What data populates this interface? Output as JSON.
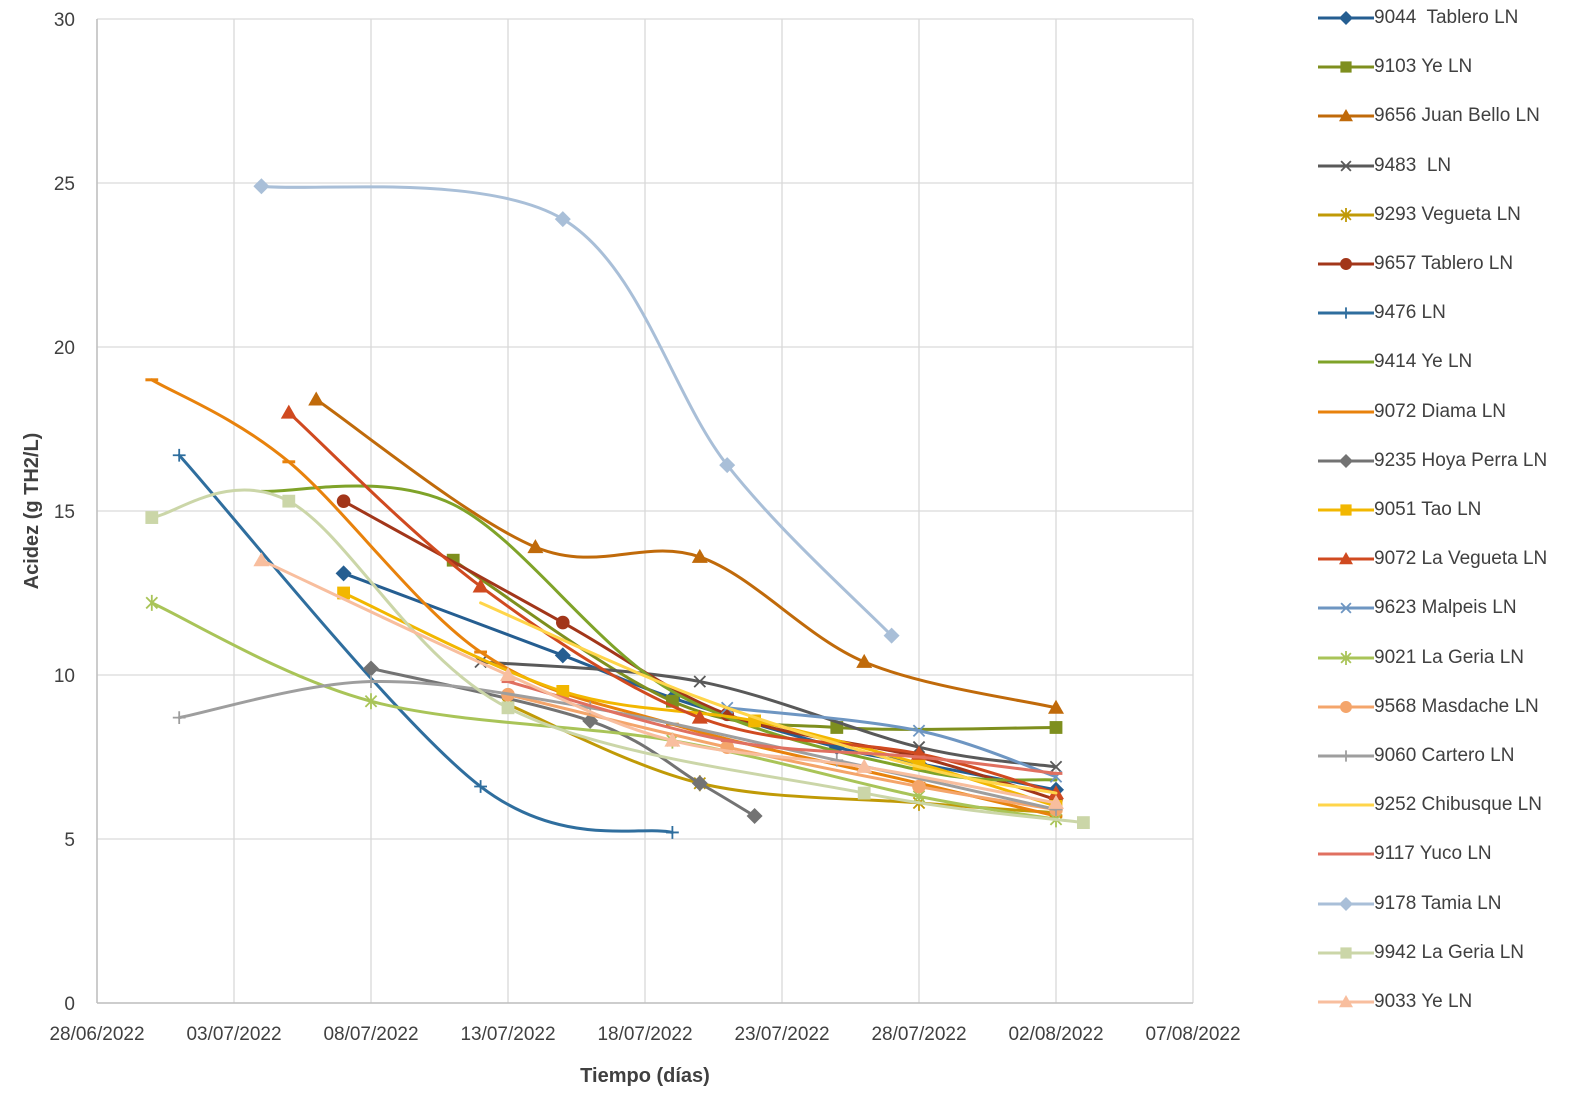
{
  "chart_data": {
    "type": "line",
    "title": "",
    "xlabel": "Tiempo (días)",
    "ylabel": "Acidez (g TH2/L)",
    "x_ticks": [
      "28/06/2022",
      "03/07/2022",
      "08/07/2022",
      "13/07/2022",
      "18/07/2022",
      "23/07/2022",
      "28/07/2022",
      "02/08/2022",
      "07/08/2022"
    ],
    "xlim": [
      "28/06/2022",
      "07/08/2022"
    ],
    "ylim": [
      0,
      30
    ],
    "y_ticks": [
      0,
      5,
      10,
      15,
      20,
      25,
      30
    ],
    "grid": true,
    "legend_position": "right",
    "series": [
      {
        "name": "9044  Tablero LN",
        "color": "#255E91",
        "marker": "diamond",
        "points": [
          [
            "07/07/2022",
            13.1
          ],
          [
            "15/07/2022",
            10.6
          ],
          [
            "19/07/2022",
            9.3
          ],
          [
            "25/07/2022",
            7.8
          ],
          [
            "28/07/2022",
            7.3
          ],
          [
            "02/08/2022",
            6.5
          ]
        ]
      },
      {
        "name": "9103 Ye LN",
        "color": "#7E8F1E",
        "marker": "square",
        "points": [
          [
            "11/07/2022",
            13.5
          ],
          [
            "19/07/2022",
            9.2
          ],
          [
            "25/07/2022",
            8.4
          ],
          [
            "02/08/2022",
            8.4
          ]
        ]
      },
      {
        "name": "9656 Juan Bello LN",
        "color": "#C06A0A",
        "marker": "triangle",
        "points": [
          [
            "06/07/2022",
            18.4
          ],
          [
            "14/07/2022",
            13.9
          ],
          [
            "20/07/2022",
            13.6
          ],
          [
            "26/07/2022",
            10.4
          ],
          [
            "02/08/2022",
            9.0
          ]
        ]
      },
      {
        "name": "9483  LN",
        "color": "#595959",
        "marker": "x",
        "points": [
          [
            "12/07/2022",
            10.4
          ],
          [
            "20/07/2022",
            9.8
          ],
          [
            "28/07/2022",
            7.8
          ],
          [
            "02/08/2022",
            7.2
          ]
        ]
      },
      {
        "name": "9293 Vegueta LN",
        "color": "#C09A06",
        "marker": "star",
        "points": [
          [
            "13/07/2022",
            9.1
          ],
          [
            "20/07/2022",
            6.7
          ],
          [
            "28/07/2022",
            6.1
          ],
          [
            "02/08/2022",
            5.8
          ]
        ]
      },
      {
        "name": "9657 Tablero LN",
        "color": "#A2361A",
        "marker": "circle",
        "points": [
          [
            "07/07/2022",
            15.3
          ],
          [
            "15/07/2022",
            11.6
          ],
          [
            "21/07/2022",
            8.8
          ],
          [
            "28/07/2022",
            7.5
          ],
          [
            "02/08/2022",
            6.2
          ]
        ]
      },
      {
        "name": "9476 LN",
        "color": "#2F6E9E",
        "marker": "plus",
        "points": [
          [
            "01/07/2022",
            16.7
          ],
          [
            "12/07/2022",
            6.6
          ],
          [
            "19/07/2022",
            5.2
          ]
        ]
      },
      {
        "name": "9414 Ye LN",
        "color": "#7FA329",
        "marker": "none",
        "points": [
          [
            "04/07/2022",
            15.6
          ],
          [
            "11/07/2022",
            15.2
          ],
          [
            "19/07/2022",
            9.5
          ],
          [
            "28/07/2022",
            7.1
          ],
          [
            "02/08/2022",
            6.8
          ]
        ]
      },
      {
        "name": "9072 Diama LN",
        "color": "#E8820C",
        "marker": "dash",
        "points": [
          [
            "30/06/2022",
            19.0
          ],
          [
            "05/07/2022",
            16.5
          ],
          [
            "12/07/2022",
            10.7
          ],
          [
            "19/07/2022",
            8.5
          ],
          [
            "28/07/2022",
            6.7
          ],
          [
            "02/08/2022",
            5.7
          ]
        ]
      },
      {
        "name": "9235 Hoya Perra LN",
        "color": "#737373",
        "marker": "diamond",
        "points": [
          [
            "08/07/2022",
            10.2
          ],
          [
            "16/07/2022",
            8.6
          ],
          [
            "20/07/2022",
            6.7
          ],
          [
            "22/07/2022",
            5.7
          ]
        ]
      },
      {
        "name": "9051 Tao LN",
        "color": "#F2B700",
        "marker": "square",
        "points": [
          [
            "07/07/2022",
            12.5
          ],
          [
            "15/07/2022",
            9.5
          ],
          [
            "22/07/2022",
            8.6
          ],
          [
            "28/07/2022",
            7.3
          ],
          [
            "02/08/2022",
            6.0
          ]
        ]
      },
      {
        "name": "9072 La Vegueta LN",
        "color": "#D04A20",
        "marker": "triangle",
        "points": [
          [
            "05/07/2022",
            18.0
          ],
          [
            "12/07/2022",
            12.7
          ],
          [
            "20/07/2022",
            8.7
          ],
          [
            "28/07/2022",
            7.6
          ],
          [
            "02/08/2022",
            6.4
          ]
        ]
      },
      {
        "name": "9623 Malpeis LN",
        "color": "#6E96C2",
        "marker": "x",
        "points": [
          [
            "21/07/2022",
            9.0
          ],
          [
            "28/07/2022",
            8.3
          ],
          [
            "02/08/2022",
            6.9
          ]
        ]
      },
      {
        "name": "9021 La Geria LN",
        "color": "#A9C458",
        "marker": "star",
        "points": [
          [
            "30/06/2022",
            12.2
          ],
          [
            "08/07/2022",
            9.2
          ],
          [
            "19/07/2022",
            8.0
          ],
          [
            "28/07/2022",
            6.3
          ],
          [
            "02/08/2022",
            5.6
          ]
        ]
      },
      {
        "name": "9568 Masdache LN",
        "color": "#F4A56B",
        "marker": "circle",
        "points": [
          [
            "13/07/2022",
            9.4
          ],
          [
            "21/07/2022",
            7.8
          ],
          [
            "28/07/2022",
            6.6
          ],
          [
            "02/08/2022",
            5.9
          ]
        ]
      },
      {
        "name": "9060 Cartero LN",
        "color": "#9E9E9E",
        "marker": "plus",
        "points": [
          [
            "01/07/2022",
            8.7
          ],
          [
            "08/07/2022",
            9.8
          ],
          [
            "16/07/2022",
            9.0
          ],
          [
            "25/07/2022",
            7.4
          ],
          [
            "02/08/2022",
            5.9
          ]
        ]
      },
      {
        "name": "9252 Chibusque LN",
        "color": "#FFD54A",
        "marker": "none",
        "points": [
          [
            "12/07/2022",
            12.2
          ],
          [
            "20/07/2022",
            9.3
          ],
          [
            "28/07/2022",
            7.2
          ],
          [
            "02/08/2022",
            6.4
          ]
        ]
      },
      {
        "name": "9117 Yuco LN",
        "color": "#E07060",
        "marker": "dash",
        "points": [
          [
            "13/07/2022",
            9.8
          ],
          [
            "21/07/2022",
            8.0
          ],
          [
            "28/07/2022",
            7.5
          ],
          [
            "02/08/2022",
            7.0
          ]
        ]
      },
      {
        "name": "9178 Tamia LN",
        "color": "#A9BFD8",
        "marker": "diamond",
        "points": [
          [
            "04/07/2022",
            24.9
          ],
          [
            "15/07/2022",
            23.9
          ],
          [
            "21/07/2022",
            16.4
          ],
          [
            "27/07/2022",
            11.2
          ]
        ]
      },
      {
        "name": "9942 La Geria LN",
        "color": "#CBD6A8",
        "marker": "square",
        "points": [
          [
            "30/06/2022",
            14.8
          ],
          [
            "05/07/2022",
            15.3
          ],
          [
            "13/07/2022",
            9.0
          ],
          [
            "26/07/2022",
            6.4
          ],
          [
            "03/08/2022",
            5.5
          ]
        ]
      },
      {
        "name": "9033 Ye LN",
        "color": "#F8BE9E",
        "marker": "triangle",
        "points": [
          [
            "04/07/2022",
            13.5
          ],
          [
            "13/07/2022",
            10.0
          ],
          [
            "19/07/2022",
            8.0
          ],
          [
            "26/07/2022",
            7.2
          ],
          [
            "02/08/2022",
            6.1
          ]
        ]
      }
    ]
  }
}
